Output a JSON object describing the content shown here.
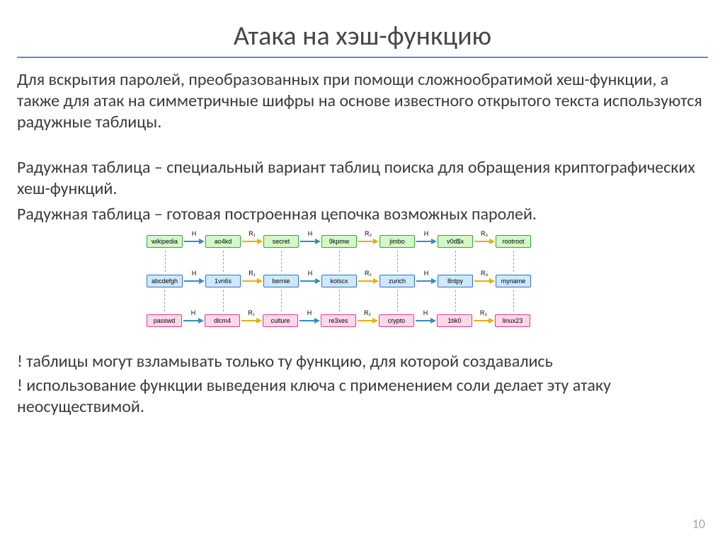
{
  "title": "Атака на хэш-функцию",
  "paragraphs": {
    "p1": "Для вскрытия паролей, преобразованных при помощи сложнообратимой хеш-функции, а также для атак на симметричные шифры на основе известного открытого текста используются радужные таблицы.",
    "p2": "Радужная таблица – специальный вариант таблиц поиска для обращения криптографических хеш-функций.",
    "p3": "Радужная таблица – готовая построенная цепочка возможных паролей."
  },
  "notes": {
    "n1": "! таблицы могут взламывать только ту функцию, для которой создавались",
    "n2": "! использование функции выведения ключа с применением соли делает эту атаку неосуществимой."
  },
  "page_number": "10",
  "diagram": {
    "colors": {
      "green_fill": "#d3f8c8",
      "green_border": "#2fa82f",
      "blue_fill": "#cfe8ff",
      "blue_border": "#2f6fcf",
      "pink_fill": "#ffd6ea",
      "pink_border": "#d63f8f",
      "arrow_h": "#2f8fbf",
      "arrow_r": "#e8b000",
      "dash": "#9a9a9a"
    },
    "arrow_labels": {
      "h": "H",
      "r1": "R₁",
      "r2": "R₂",
      "r3": "R₃"
    },
    "chains": [
      {
        "color": "green",
        "nodes": [
          "wikipedia",
          "ao4kd",
          "secret",
          "9kpmw",
          "jimbo",
          "v0d$x",
          "rootroot"
        ],
        "arrows": [
          "h",
          "r1",
          "h",
          "r2",
          "h",
          "r3"
        ]
      },
      {
        "color": "blue",
        "nodes": [
          "abcdefgh",
          "1vn6s",
          "bernie",
          "kolscx",
          "zurich",
          "8ntpy",
          "myname"
        ],
        "arrows": [
          "h",
          "r1",
          "h",
          "r2",
          "h",
          "r3"
        ]
      },
      {
        "color": "pink",
        "nodes": [
          "passwd",
          "dlcm4",
          "culture",
          "re3xes",
          "crypto",
          "1tik0",
          "linux23"
        ],
        "arrows": [
          "h",
          "r1",
          "h",
          "r2",
          "h",
          "r3"
        ]
      }
    ]
  }
}
